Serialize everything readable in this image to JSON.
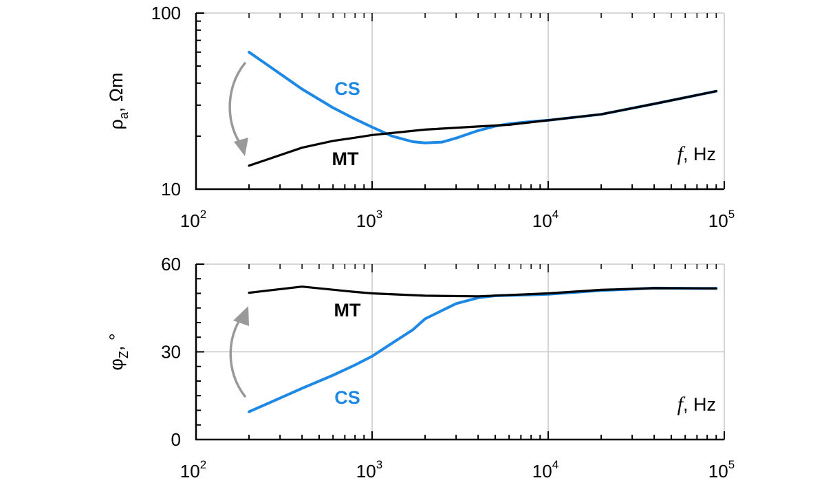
{
  "chart_data": [
    {
      "type": "line",
      "panel": "top",
      "xscale": "log",
      "yscale": "log",
      "xlim": [
        100,
        100000
      ],
      "ylim": [
        10,
        100
      ],
      "ylabel": "ρa, Ωm",
      "ylabel_base": "ρ",
      "ylabel_sub": "a",
      "ylabel_tail": ", Ωm",
      "xlabel_var": "f",
      "xlabel_unit": ", Hz",
      "ytick_labels": [
        "10",
        "100"
      ],
      "xtick_labels": [
        {
          "base": "10",
          "exp": "2"
        },
        {
          "base": "10",
          "exp": "3"
        },
        {
          "base": "10",
          "exp": "4"
        },
        {
          "base": "10",
          "exp": "5"
        }
      ],
      "grid": true,
      "colors": {
        "CS": "#1e88e5",
        "MT": "#000000",
        "arrow": "#999999"
      },
      "series": [
        {
          "name": "CS",
          "x": [
            200,
            400,
            600,
            800,
            1000,
            1300,
            1700,
            2000,
            2500,
            3000,
            4000,
            5000,
            6000,
            8000,
            10000,
            20000,
            40000,
            90000
          ],
          "y": [
            60,
            37,
            29,
            25,
            22.5,
            20,
            18.6,
            18.3,
            18.5,
            19.5,
            21.5,
            22.8,
            23.5,
            24.2,
            24.6,
            26.6,
            30.5,
            36
          ]
        },
        {
          "name": "MT",
          "x": [
            200,
            400,
            600,
            800,
            1000,
            2000,
            4000,
            6000,
            10000,
            20000,
            40000,
            90000
          ],
          "y": [
            13.6,
            17.2,
            18.8,
            19.6,
            20.3,
            21.8,
            22.7,
            23.2,
            24.6,
            26.6,
            30.5,
            36
          ]
        }
      ]
    },
    {
      "type": "line",
      "panel": "bottom",
      "xscale": "log",
      "xlim": [
        100,
        100000
      ],
      "ylim": [
        0,
        60
      ],
      "ylabel": "φZ, °",
      "ylabel_base": "φ",
      "ylabel_sub": "Z",
      "ylabel_tail": ", °",
      "xlabel_var": "f",
      "xlabel_unit": ", Hz",
      "ytick_labels": [
        "0",
        "30",
        "60"
      ],
      "xtick_labels": [
        {
          "base": "10",
          "exp": "2"
        },
        {
          "base": "10",
          "exp": "3"
        },
        {
          "base": "10",
          "exp": "4"
        },
        {
          "base": "10",
          "exp": "5"
        }
      ],
      "grid": true,
      "colors": {
        "CS": "#1e88e5",
        "MT": "#000000",
        "arrow": "#999999"
      },
      "series": [
        {
          "name": "CS",
          "x": [
            200,
            400,
            600,
            800,
            1000,
            1300,
            1700,
            2000,
            3000,
            4000,
            5000,
            8000,
            10000,
            20000,
            40000,
            90000
          ],
          "y": [
            9.5,
            17.5,
            22,
            25.5,
            28.5,
            33,
            37.5,
            41.3,
            46.5,
            48.5,
            49.2,
            49.5,
            49.7,
            51,
            51.8,
            51.7
          ]
        },
        {
          "name": "MT",
          "x": [
            200,
            400,
            800,
            1000,
            2000,
            4000,
            10000,
            20000,
            40000,
            90000
          ],
          "y": [
            50.2,
            52.3,
            50.5,
            50,
            49.2,
            49,
            50,
            51.2,
            51.8,
            51.7
          ]
        }
      ]
    }
  ]
}
